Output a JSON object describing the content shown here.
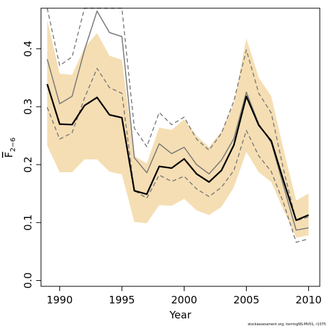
{
  "chart_data": {
    "type": "line",
    "xlabel": "Year",
    "ylabel": "F2-6",
    "ylabel_main": "F",
    "ylabel_sub": "2−6",
    "xlim": [
      1988.5,
      2010.9
    ],
    "ylim": [
      -0.01,
      0.47
    ],
    "x_ticks": [
      1990,
      1995,
      2000,
      2005,
      2010
    ],
    "y_ticks": [
      0.0,
      0.1,
      0.2,
      0.3,
      0.4
    ],
    "y_tick_labels": [
      "0.0",
      "0.1",
      "0.2",
      "0.3",
      "0.4"
    ],
    "x": [
      1989,
      1990,
      1991,
      1992,
      1993,
      1994,
      1995,
      1996,
      1997,
      1998,
      1999,
      2000,
      2001,
      2002,
      2003,
      2004,
      2005,
      2006,
      2007,
      2008,
      2009,
      2010
    ],
    "colors": {
      "band": "#f5deb3",
      "estimate": "#000000",
      "comparison": "#777777"
    },
    "series": [
      {
        "role": "ci_upper",
        "values": [
          0.45,
          0.357,
          0.355,
          0.402,
          0.427,
          0.388,
          0.381,
          0.215,
          0.202,
          0.264,
          0.26,
          0.278,
          0.25,
          0.23,
          0.258,
          0.306,
          0.418,
          0.35,
          0.318,
          0.225,
          0.138,
          0.15
        ]
      },
      {
        "role": "ci_lower",
        "values": [
          0.233,
          0.187,
          0.187,
          0.209,
          0.209,
          0.188,
          0.183,
          0.101,
          0.099,
          0.13,
          0.129,
          0.141,
          0.121,
          0.113,
          0.127,
          0.161,
          0.222,
          0.187,
          0.17,
          0.121,
          0.074,
          0.078
        ]
      },
      {
        "role": "estimate",
        "values": [
          0.339,
          0.27,
          0.269,
          0.302,
          0.316,
          0.286,
          0.281,
          0.155,
          0.149,
          0.197,
          0.194,
          0.21,
          0.184,
          0.17,
          0.19,
          0.234,
          0.318,
          0.268,
          0.241,
          0.171,
          0.104,
          0.113
        ]
      },
      {
        "role": "comparison_estimate",
        "values": [
          0.382,
          0.305,
          0.318,
          0.398,
          0.465,
          0.428,
          0.421,
          0.212,
          0.186,
          0.236,
          0.219,
          0.23,
          0.2,
          0.184,
          0.208,
          0.245,
          0.325,
          0.27,
          0.238,
          0.162,
          0.087,
          0.091
        ]
      },
      {
        "role": "comparison_upper",
        "values": [
          0.47,
          0.371,
          0.386,
          0.47,
          0.47,
          0.47,
          0.47,
          0.263,
          0.231,
          0.29,
          0.269,
          0.282,
          0.244,
          0.225,
          0.254,
          0.31,
          0.398,
          0.323,
          0.289,
          0.19,
          0.103,
          0.11
        ]
      },
      {
        "role": "comparison_lower",
        "values": [
          0.299,
          0.244,
          0.255,
          0.315,
          0.366,
          0.333,
          0.323,
          0.155,
          0.142,
          0.182,
          0.171,
          0.18,
          0.158,
          0.145,
          0.161,
          0.19,
          0.259,
          0.215,
          0.188,
          0.133,
          0.066,
          0.072
        ]
      }
    ]
  },
  "footnote": "stockassessment.org, herringNS-MV01, r1075"
}
